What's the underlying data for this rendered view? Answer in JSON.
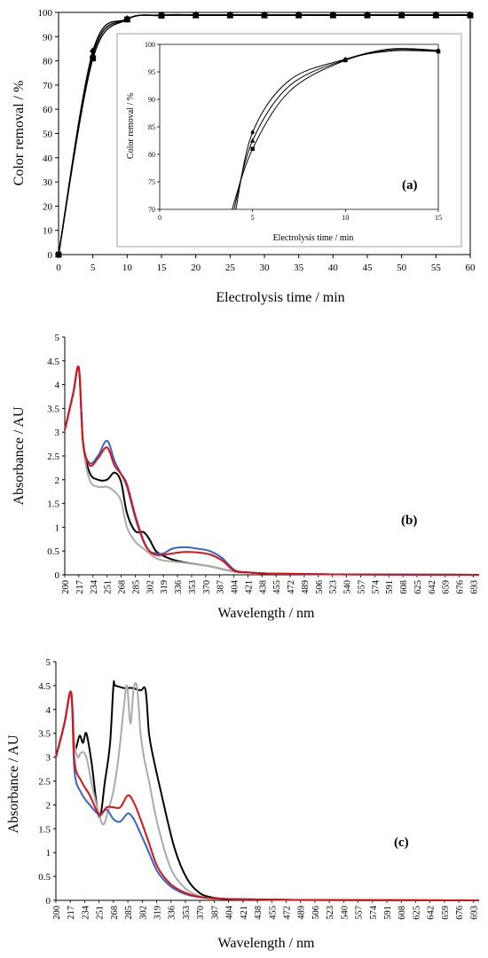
{
  "chart_data": [
    {
      "type": "line",
      "panel_label": "(a)",
      "xlabel": "Electrolysis time / min",
      "ylabel": "Color removal / %",
      "xlim": [
        0,
        60
      ],
      "ylim": [
        0,
        100
      ],
      "xticks": [
        "0",
        "5",
        "10",
        "15",
        "20",
        "25",
        "30",
        "35",
        "40",
        "45",
        "50",
        "55",
        "60"
      ],
      "yticks": [
        "0",
        "10",
        "20",
        "30",
        "40",
        "50",
        "60",
        "70",
        "80",
        "90",
        "100"
      ],
      "grid": false,
      "legend": "none",
      "series": [
        {
          "marker": "diamond",
          "x": [
            0,
            5,
            10,
            15,
            20,
            25,
            30,
            35,
            40,
            45,
            50,
            55,
            60
          ],
          "y": [
            0,
            84,
            97.3,
            98.9,
            99,
            99,
            99,
            99,
            99,
            99,
            99,
            99,
            99
          ]
        },
        {
          "marker": "triangle",
          "x": [
            0,
            5,
            10,
            15,
            20,
            25,
            30,
            35,
            40,
            45,
            50,
            55,
            60
          ],
          "y": [
            0,
            82.5,
            97.2,
            98.8,
            98.9,
            98.9,
            98.9,
            98.9,
            98.9,
            98.9,
            98.9,
            98.9,
            98.9
          ]
        },
        {
          "marker": "square",
          "x": [
            0,
            5,
            10,
            15,
            20,
            25,
            30,
            35,
            40,
            45,
            50,
            55,
            60
          ],
          "y": [
            0,
            81,
            97.1,
            98.7,
            98.8,
            98.8,
            98.8,
            98.8,
            98.8,
            98.8,
            98.8,
            98.8,
            98.8
          ]
        }
      ],
      "inset": {
        "xlabel": "Electrolysis time / min",
        "ylabel": "Color removal / %",
        "xlim": [
          0,
          15
        ],
        "ylim": [
          70,
          100
        ],
        "xticks": [
          "0",
          "5",
          "10",
          "15"
        ],
        "yticks": [
          "70",
          "75",
          "80",
          "85",
          "90",
          "95",
          "100"
        ],
        "series": [
          {
            "marker": "diamond",
            "x": [
              4.1,
              5,
              7,
              10,
              12.5,
              15
            ],
            "y": [
              70,
              84,
              93.5,
              97.3,
              99.2,
              98.9
            ]
          },
          {
            "marker": "triangle",
            "x": [
              4.0,
              5,
              7,
              10,
              12.5,
              15
            ],
            "y": [
              70,
              82.5,
              92.5,
              97.2,
              99,
              98.8
            ]
          },
          {
            "marker": "square",
            "x": [
              3.9,
              5,
              7,
              10,
              12.5,
              15
            ],
            "y": [
              70,
              81,
              91.5,
              97.1,
              98.8,
              98.7
            ]
          }
        ]
      }
    },
    {
      "type": "line",
      "panel_label": "(b)",
      "xlabel": "Wavelength / nm",
      "ylabel": "Absorbance / AU",
      "xlim": [
        200,
        700
      ],
      "ylim": [
        0,
        5
      ],
      "xticks": [
        "200",
        "217",
        "234",
        "251",
        "268",
        "285",
        "302",
        "319",
        "336",
        "353",
        "370",
        "387",
        "404",
        "421",
        "438",
        "455",
        "472",
        "489",
        "506",
        "523",
        "540",
        "557",
        "574",
        "591",
        "608",
        "625",
        "642",
        "659",
        "676",
        "693"
      ],
      "yticks": [
        "0",
        "0.5",
        "1",
        "1.5",
        "2",
        "2.5",
        "3",
        "3.5",
        "4",
        "4.5",
        "5"
      ],
      "grid": false,
      "legend": "none",
      "series": [
        {
          "color": "#000000",
          "x": [
            200,
            210,
            217,
            222,
            230,
            240,
            251,
            260,
            268,
            275,
            285,
            295,
            302,
            310,
            319,
            330,
            345,
            360,
            375,
            390,
            405,
            420,
            440,
            470,
            520,
            600,
            700
          ],
          "y": [
            3.05,
            3.8,
            4.35,
            2.8,
            2.15,
            2.0,
            2.0,
            2.15,
            1.95,
            1.3,
            0.92,
            0.9,
            0.75,
            0.5,
            0.4,
            0.32,
            0.26,
            0.22,
            0.18,
            0.12,
            0.07,
            0.05,
            0.03,
            0.02,
            0.01,
            0.005,
            0
          ]
        },
        {
          "color": "#aaaaaa",
          "x": [
            200,
            210,
            217,
            222,
            230,
            240,
            251,
            260,
            268,
            275,
            285,
            295,
            302,
            310,
            319,
            330,
            345,
            360,
            375,
            390,
            405,
            420,
            440,
            470,
            520,
            600,
            700
          ],
          "y": [
            3.05,
            3.8,
            4.35,
            2.75,
            2.0,
            1.85,
            1.85,
            1.75,
            1.55,
            1.0,
            0.7,
            0.55,
            0.45,
            0.35,
            0.3,
            0.28,
            0.25,
            0.22,
            0.18,
            0.12,
            0.07,
            0.05,
            0.03,
            0.02,
            0.01,
            0.005,
            0
          ]
        },
        {
          "color": "#3366cc",
          "x": [
            200,
            210,
            217,
            222,
            230,
            240,
            251,
            260,
            268,
            275,
            285,
            295,
            302,
            310,
            319,
            330,
            345,
            360,
            375,
            390,
            405,
            420,
            440,
            470,
            520,
            600,
            700
          ],
          "y": [
            3.05,
            3.8,
            4.35,
            2.8,
            2.35,
            2.5,
            2.82,
            2.4,
            2.12,
            1.85,
            1.2,
            0.7,
            0.5,
            0.45,
            0.45,
            0.55,
            0.58,
            0.55,
            0.5,
            0.35,
            0.1,
            0.05,
            0.03,
            0.02,
            0.01,
            0.005,
            0
          ]
        },
        {
          "color": "#dd1111",
          "x": [
            200,
            210,
            217,
            222,
            230,
            240,
            251,
            260,
            268,
            275,
            285,
            295,
            302,
            310,
            319,
            330,
            345,
            360,
            375,
            390,
            405,
            420,
            440,
            470,
            520,
            600,
            700
          ],
          "y": [
            3.05,
            3.8,
            4.35,
            2.8,
            2.3,
            2.45,
            2.68,
            2.3,
            2.12,
            1.9,
            1.25,
            0.72,
            0.5,
            0.42,
            0.42,
            0.45,
            0.48,
            0.47,
            0.43,
            0.3,
            0.08,
            0.05,
            0.03,
            0.02,
            0.01,
            0.005,
            0
          ]
        }
      ]
    },
    {
      "type": "line",
      "panel_label": "(c)",
      "xlabel": "Wavelength / nm",
      "ylabel": "Absorbance / AU",
      "xlim": [
        200,
        700
      ],
      "ylim": [
        0,
        5
      ],
      "xticks": [
        "200",
        "217",
        "234",
        "251",
        "268",
        "285",
        "302",
        "319",
        "336",
        "353",
        "370",
        "387",
        "404",
        "421",
        "438",
        "455",
        "472",
        "489",
        "506",
        "523",
        "540",
        "557",
        "574",
        "591",
        "608",
        "625",
        "642",
        "659",
        "676",
        "693"
      ],
      "yticks": [
        "0",
        "0.5",
        "1",
        "1.5",
        "2",
        "2.5",
        "3",
        "3.5",
        "4",
        "4.5",
        "5"
      ],
      "grid": false,
      "legend": "none",
      "series": [
        {
          "color": "#000000",
          "x": [
            200,
            210,
            218,
            222,
            228,
            232,
            236,
            242,
            251,
            258,
            264,
            268,
            270,
            280,
            290,
            300,
            306,
            310,
            315,
            325,
            340,
            355,
            370,
            385,
            400,
            430,
            480,
            560,
            700
          ],
          "y": [
            3.0,
            3.7,
            4.35,
            3.2,
            3.45,
            3.3,
            3.5,
            2.9,
            1.75,
            2.5,
            3.3,
            4.5,
            4.5,
            4.45,
            4.45,
            4.4,
            4.4,
            3.5,
            3.0,
            2.2,
            1.1,
            0.45,
            0.15,
            0.06,
            0.03,
            0.02,
            0.01,
            0.005,
            0
          ]
        },
        {
          "color": "#aaaaaa",
          "x": [
            200,
            210,
            218,
            222,
            226,
            230,
            236,
            244,
            255,
            262,
            268,
            274,
            280,
            284,
            288,
            292,
            296,
            300,
            304,
            310,
            320,
            335,
            350,
            365,
            380,
            400,
            430,
            480,
            560,
            700
          ],
          "y": [
            3.0,
            3.7,
            4.35,
            3.3,
            3.0,
            3.1,
            3.0,
            2.3,
            1.6,
            1.9,
            2.3,
            3.0,
            4.0,
            4.5,
            3.7,
            4.45,
            4.45,
            3.5,
            3.0,
            2.5,
            1.6,
            0.7,
            0.3,
            0.12,
            0.05,
            0.03,
            0.02,
            0.01,
            0.005,
            0
          ]
        },
        {
          "color": "#3366cc",
          "x": [
            200,
            210,
            218,
            222,
            230,
            240,
            251,
            260,
            268,
            276,
            285,
            292,
            300,
            310,
            320,
            335,
            350,
            365,
            380,
            400,
            430,
            480,
            560,
            700
          ],
          "y": [
            3.0,
            3.7,
            4.35,
            2.7,
            2.25,
            2.0,
            1.8,
            1.9,
            1.7,
            1.65,
            1.82,
            1.7,
            1.4,
            1.0,
            0.6,
            0.3,
            0.15,
            0.08,
            0.05,
            0.03,
            0.02,
            0.01,
            0.005,
            0
          ]
        },
        {
          "color": "#dd1111",
          "x": [
            200,
            210,
            218,
            222,
            230,
            240,
            251,
            260,
            268,
            276,
            285,
            292,
            300,
            310,
            320,
            335,
            350,
            365,
            380,
            400,
            430,
            480,
            560,
            700
          ],
          "y": [
            3.0,
            3.7,
            4.35,
            2.9,
            2.5,
            2.2,
            1.8,
            1.95,
            1.95,
            1.95,
            2.2,
            2.05,
            1.7,
            1.2,
            0.7,
            0.35,
            0.18,
            0.09,
            0.05,
            0.03,
            0.02,
            0.01,
            0.005,
            0
          ]
        }
      ]
    }
  ]
}
